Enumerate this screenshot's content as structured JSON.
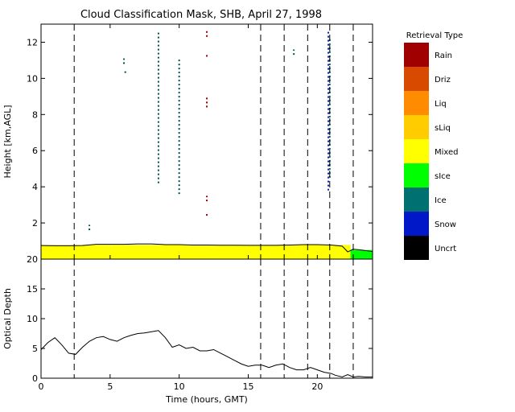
{
  "chart_data": [
    {
      "type": "heatmap",
      "title": "Cloud Classification Mask, SHB, April 27, 1998",
      "ylabel": "Height [km,AGL]",
      "xlabel": "",
      "xlim": [
        0,
        24
      ],
      "ylim": [
        0,
        13
      ],
      "xticks": [
        "0",
        "5",
        "10",
        "15",
        "20"
      ],
      "yticks": [
        "2",
        "4",
        "6",
        "8",
        "10",
        "12"
      ],
      "legend_title": "Retrieval Type",
      "legend_position": "right",
      "legend": [
        {
          "label": "Rain",
          "color": "#a00000"
        },
        {
          "label": "Driz",
          "color": "#d84a00"
        },
        {
          "label": "Liq",
          "color": "#ff8c00"
        },
        {
          "label": "sLiq",
          "color": "#ffcc00"
        },
        {
          "label": "Mixed",
          "color": "#ffff00"
        },
        {
          "label": "sIce",
          "color": "#00ff00"
        },
        {
          "label": "Ice",
          "color": "#007070"
        },
        {
          "label": "Snow",
          "color": "#0018c8"
        },
        {
          "label": "Uncrt",
          "color": "#000000"
        }
      ],
      "dashed_times": [
        2.4,
        15.9,
        17.6,
        19.3,
        20.9,
        22.6
      ],
      "mixed_layer": {
        "time_range": [
          0,
          22.4
        ],
        "base": 0,
        "top": 0.78
      },
      "sice_patch": {
        "time_range": [
          22.4,
          24
        ],
        "base": 0,
        "top": 0.5
      },
      "cloud_top_line": [
        [
          0,
          0.75
        ],
        [
          1,
          0.74
        ],
        [
          2,
          0.74
        ],
        [
          3,
          0.75
        ],
        [
          4,
          0.82
        ],
        [
          5,
          0.82
        ],
        [
          6,
          0.82
        ],
        [
          7,
          0.84
        ],
        [
          8,
          0.84
        ],
        [
          9,
          0.8
        ],
        [
          10,
          0.8
        ],
        [
          11,
          0.78
        ],
        [
          12,
          0.78
        ],
        [
          13,
          0.77
        ],
        [
          14,
          0.77
        ],
        [
          15,
          0.76
        ],
        [
          16,
          0.76
        ],
        [
          17,
          0.76
        ],
        [
          18,
          0.78
        ],
        [
          19,
          0.8
        ],
        [
          20,
          0.8
        ],
        [
          21,
          0.78
        ],
        [
          21.8,
          0.72
        ],
        [
          22.2,
          0.4
        ],
        [
          22.6,
          0.55
        ],
        [
          23.2,
          0.5
        ],
        [
          24,
          0.42
        ]
      ],
      "streaks": [
        {
          "time": 3.5,
          "bottom": 1.6,
          "top": 1.9,
          "color": "#005050"
        },
        {
          "time": 6.0,
          "bottom": 10.8,
          "top": 11.1,
          "color": "#005050"
        },
        {
          "time": 6.1,
          "bottom": 10.3,
          "top": 10.5,
          "color": "#005050"
        },
        {
          "time": 8.5,
          "bottom": 4.2,
          "top": 12.6,
          "color": "#005050"
        },
        {
          "time": 10.0,
          "bottom": 3.6,
          "top": 11.1,
          "color": "#005050"
        },
        {
          "time": 12.0,
          "bottom": 12.3,
          "top": 12.7,
          "color": "#a00000"
        },
        {
          "time": 12.0,
          "bottom": 11.2,
          "top": 11.3,
          "color": "#a00000"
        },
        {
          "time": 12.0,
          "bottom": 8.4,
          "top": 9.0,
          "color": "#a00000"
        },
        {
          "time": 12.0,
          "bottom": 3.2,
          "top": 3.5,
          "color": "#a00000"
        },
        {
          "time": 12.0,
          "bottom": 2.4,
          "top": 2.6,
          "color": "#a00000"
        },
        {
          "time": 18.3,
          "bottom": 11.3,
          "top": 11.6,
          "color": "#005050"
        },
        {
          "time": 20.8,
          "bottom": 3.8,
          "top": 12.7,
          "color": "#0018c8"
        },
        {
          "time": 20.9,
          "bottom": 4.5,
          "top": 12.2,
          "color": "#005050"
        }
      ]
    },
    {
      "type": "line",
      "title": "",
      "xlabel": "Time (hours, GMT)",
      "ylabel": "Optical Depth",
      "xlim": [
        0,
        24
      ],
      "ylim": [
        0,
        20
      ],
      "xticks": [
        "0",
        "5",
        "10",
        "15",
        "20"
      ],
      "yticks": [
        "0",
        "5",
        "10",
        "15",
        "20"
      ],
      "dashed_times": [
        2.4,
        15.9,
        17.6,
        19.3,
        20.9,
        22.6
      ],
      "series": [
        {
          "color": "#000000",
          "values": [
            [
              0,
              4.8
            ],
            [
              0.5,
              6.0
            ],
            [
              1,
              6.8
            ],
            [
              1.5,
              5.6
            ],
            [
              2,
              4.2
            ],
            [
              2.5,
              4.0
            ],
            [
              3,
              5.2
            ],
            [
              3.5,
              6.2
            ],
            [
              4,
              6.8
            ],
            [
              4.5,
              7.0
            ],
            [
              5,
              6.5
            ],
            [
              5.5,
              6.2
            ],
            [
              6,
              6.8
            ],
            [
              6.5,
              7.2
            ],
            [
              7,
              7.5
            ],
            [
              7.5,
              7.6
            ],
            [
              8,
              7.8
            ],
            [
              8.5,
              8.0
            ],
            [
              9,
              6.8
            ],
            [
              9.5,
              5.2
            ],
            [
              10,
              5.6
            ],
            [
              10.5,
              5.0
            ],
            [
              11,
              5.2
            ],
            [
              11.5,
              4.6
            ],
            [
              12,
              4.6
            ],
            [
              12.5,
              4.8
            ],
            [
              13,
              4.2
            ],
            [
              13.5,
              3.6
            ],
            [
              14,
              3.0
            ],
            [
              14.5,
              2.4
            ],
            [
              15,
              2.0
            ],
            [
              15.5,
              2.2
            ],
            [
              16,
              2.2
            ],
            [
              16.5,
              1.8
            ],
            [
              17,
              2.2
            ],
            [
              17.5,
              2.4
            ],
            [
              18,
              1.8
            ],
            [
              18.5,
              1.4
            ],
            [
              19,
              1.4
            ],
            [
              19.5,
              1.8
            ],
            [
              20,
              1.4
            ],
            [
              20.5,
              1.0
            ],
            [
              21,
              0.8
            ],
            [
              21.3,
              0.5
            ],
            [
              21.8,
              0.2
            ],
            [
              22.2,
              0.6
            ],
            [
              22.6,
              0.2
            ],
            [
              23,
              0.3
            ],
            [
              23.5,
              0.2
            ],
            [
              24,
              0.2
            ]
          ]
        }
      ]
    }
  ]
}
